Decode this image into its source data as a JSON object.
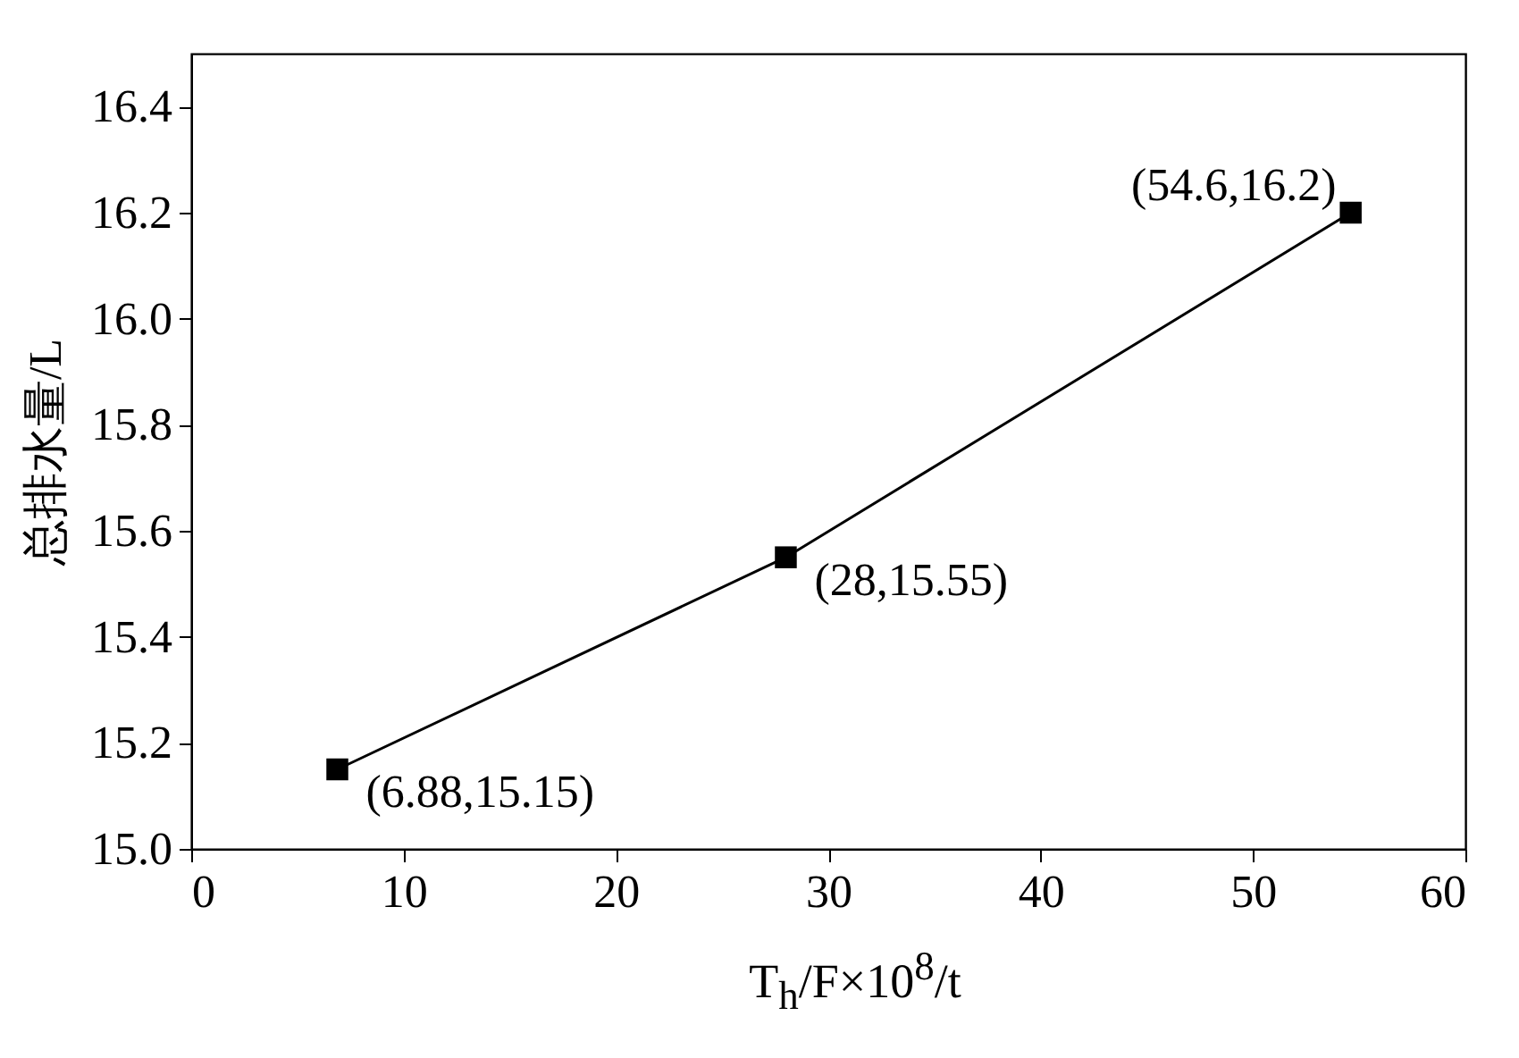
{
  "chart_data": {
    "type": "line",
    "xlabel": "T$_{h}$/F×10$^{8}$/t",
    "ylabel": "总排水量/L",
    "x": [
      6.88,
      28,
      54.6
    ],
    "values": [
      15.15,
      15.55,
      16.2
    ],
    "color": "#000000",
    "marker": "square",
    "line_style": "solid",
    "xlim": [
      0,
      60
    ],
    "xticks": [
      0,
      10,
      20,
      30,
      40,
      50,
      60
    ],
    "ylim": [
      15.0,
      16.5
    ],
    "yticks": [
      {
        "value": 15,
        "label": "15.0"
      },
      15.2,
      15.4,
      15.6,
      15.8,
      {
        "value": 16,
        "label": "16.0"
      },
      16.2,
      16.4
    ],
    "grid": false,
    "annotations": [
      {
        "text": "(6.88,15.15)",
        "x": 6.88,
        "y": 15.15
      },
      {
        "text": "(28,15.55)",
        "x": 28,
        "y": 15.55
      },
      {
        "text": "(54.6,16.2)",
        "x": 54.6,
        "y": 16.2
      }
    ]
  }
}
